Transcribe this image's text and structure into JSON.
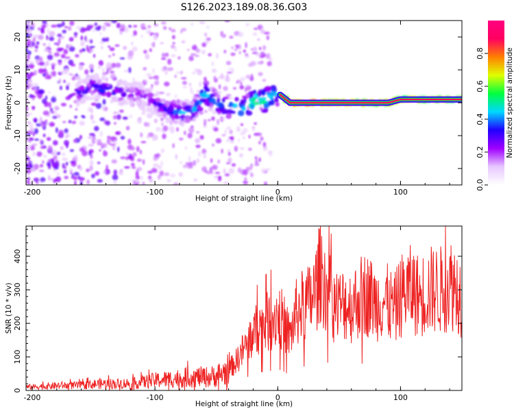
{
  "title": "S126.2023.189.08.36.G03",
  "chart_data": [
    {
      "type": "heatmap",
      "xlabel": "Height of straight line (km)",
      "ylabel": "Frequency (Hz)",
      "xlim": [
        -205,
        150
      ],
      "ylim": [
        -25,
        25
      ],
      "xticks": [
        -200,
        -100,
        0,
        100
      ],
      "yticks": [
        -20,
        -10,
        0,
        10,
        20
      ],
      "colorbar": {
        "label": "Normalized spectral amplitude",
        "range": [
          0,
          1
        ],
        "ticks": [
          "0.0",
          "0.2",
          "0.4",
          "0.6",
          "0.8"
        ],
        "tick_values": [
          0,
          0.2,
          0.4,
          0.6,
          0.8
        ],
        "colors": [
          "#ffffff",
          "#e8c8ff",
          "#a000ff",
          "#2000ff",
          "#00d8ff",
          "#00ff40",
          "#e0ff00",
          "#ff8000",
          "#ff0060",
          "#ff0080"
        ]
      },
      "ridge": {
        "x": [
          -160,
          -150,
          -140,
          -130,
          -120,
          -110,
          -100,
          -90,
          -80,
          -70,
          -60,
          -50,
          -40,
          -30,
          -20,
          -10,
          0,
          10,
          20,
          30,
          40,
          50,
          60,
          70,
          80,
          90,
          100,
          110,
          120,
          130,
          140,
          150
        ],
        "y": [
          3,
          5,
          4,
          3,
          3,
          2,
          0,
          -2,
          -3,
          -3,
          3,
          0,
          -1,
          -2,
          0,
          1,
          3,
          0,
          0,
          0,
          0,
          0,
          0,
          0,
          0,
          0,
          1,
          1,
          1,
          1,
          1,
          1
        ],
        "amplitude": [
          0.35,
          0.4,
          0.4,
          0.35,
          0.35,
          0.35,
          0.35,
          0.4,
          0.45,
          0.45,
          0.5,
          0.45,
          0.5,
          0.5,
          0.6,
          0.6,
          0.5,
          0.95,
          0.95,
          0.95,
          0.9,
          0.9,
          0.9,
          0.85,
          0.85,
          0.85,
          0.85,
          0.85,
          0.8,
          0.8,
          0.8,
          0.8
        ]
      }
    },
    {
      "type": "line",
      "xlabel": "Height of straight line (km)",
      "ylabel": "SNR (10 * v/v)",
      "xlim": [
        -205,
        150
      ],
      "ylim": [
        0,
        490
      ],
      "xticks": [
        -200,
        -100,
        0,
        100
      ],
      "yticks": [
        0,
        100,
        200,
        300,
        400
      ],
      "series": [
        {
          "color": "#ee2222",
          "x": [
            -205,
            -190,
            -175,
            -160,
            -145,
            -130,
            -115,
            -100,
            -85,
            -70,
            -55,
            -45,
            -35,
            -30,
            -25,
            -20,
            -15,
            -10,
            -5,
            0,
            5,
            10,
            15,
            20,
            25,
            30,
            35,
            40,
            45,
            50,
            55,
            60,
            65,
            70,
            75,
            80,
            85,
            90,
            95,
            100,
            105,
            110,
            115,
            120,
            125,
            130,
            135,
            140,
            145,
            150
          ],
          "y": [
            10,
            12,
            15,
            15,
            20,
            20,
            22,
            30,
            35,
            40,
            40,
            50,
            80,
            110,
            140,
            170,
            190,
            200,
            210,
            230,
            200,
            160,
            230,
            250,
            260,
            290,
            360,
            300,
            260,
            250,
            260,
            250,
            270,
            290,
            280,
            260,
            270,
            260,
            240,
            280,
            300,
            300,
            280,
            290,
            300,
            300,
            300,
            320,
            310,
            280
          ]
        }
      ]
    }
  ]
}
